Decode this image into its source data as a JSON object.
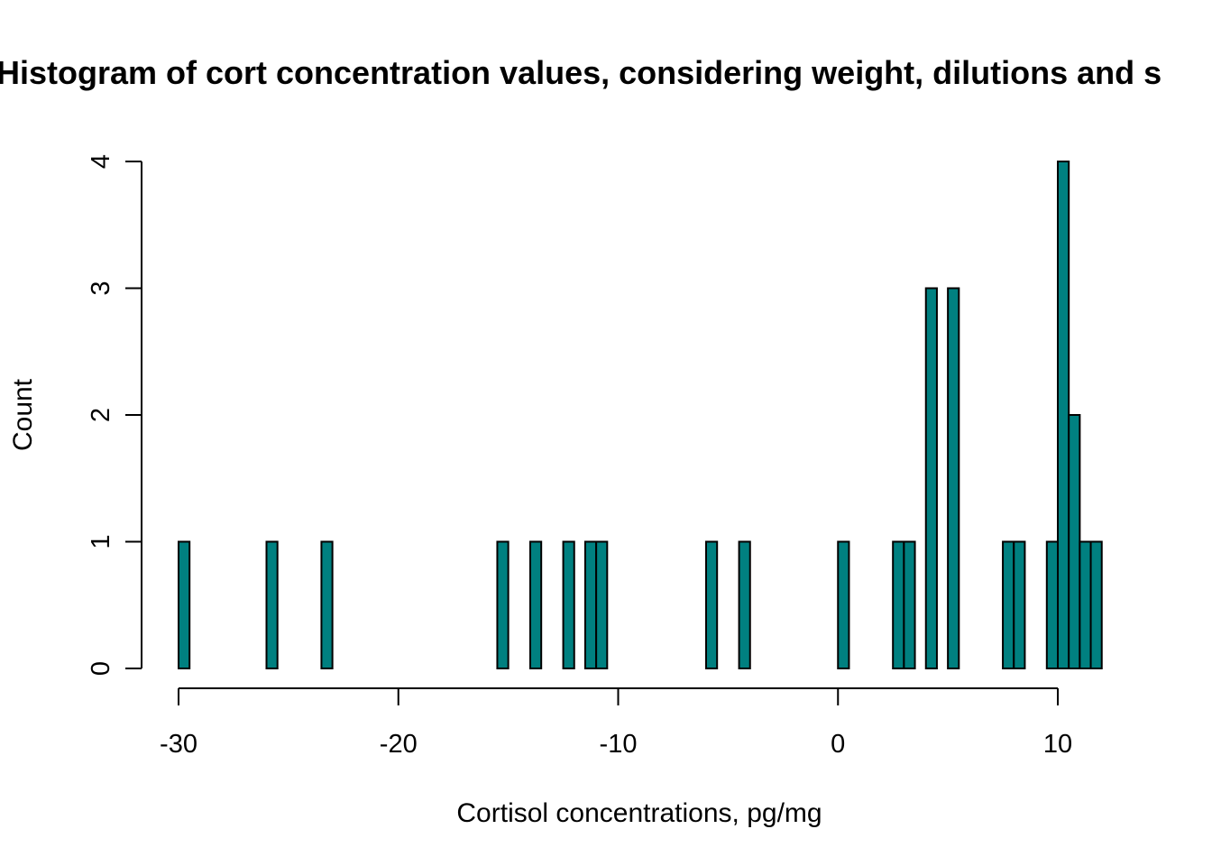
{
  "chart_data": {
    "type": "bar",
    "title": "Histogram of cort concentration values, considering weight, dilutions and s",
    "xlabel": "Cortisol concentrations, pg/mg",
    "ylabel": "Count",
    "xlim": [
      -30,
      12
    ],
    "ylim": [
      0,
      4
    ],
    "x_ticks": [
      "-30",
      "-20",
      "-10",
      "0",
      "10"
    ],
    "y_ticks": [
      "0",
      "1",
      "2",
      "3",
      "4"
    ],
    "bin_width": 0.5,
    "bar_color": "#008080",
    "bins": [
      {
        "x0": -30.0,
        "count": 1
      },
      {
        "x0": -26.0,
        "count": 1
      },
      {
        "x0": -23.5,
        "count": 1
      },
      {
        "x0": -15.5,
        "count": 1
      },
      {
        "x0": -14.0,
        "count": 1
      },
      {
        "x0": -12.5,
        "count": 1
      },
      {
        "x0": -11.5,
        "count": 1
      },
      {
        "x0": -11.0,
        "count": 1
      },
      {
        "x0": -6.0,
        "count": 1
      },
      {
        "x0": -4.5,
        "count": 1
      },
      {
        "x0": 0.0,
        "count": 1
      },
      {
        "x0": 2.5,
        "count": 1
      },
      {
        "x0": 3.0,
        "count": 1
      },
      {
        "x0": 4.0,
        "count": 3
      },
      {
        "x0": 5.0,
        "count": 3
      },
      {
        "x0": 7.5,
        "count": 1
      },
      {
        "x0": 8.0,
        "count": 1
      },
      {
        "x0": 9.5,
        "count": 1
      },
      {
        "x0": 10.0,
        "count": 4
      },
      {
        "x0": 10.5,
        "count": 2
      },
      {
        "x0": 11.0,
        "count": 1
      },
      {
        "x0": 11.5,
        "count": 1
      }
    ]
  }
}
